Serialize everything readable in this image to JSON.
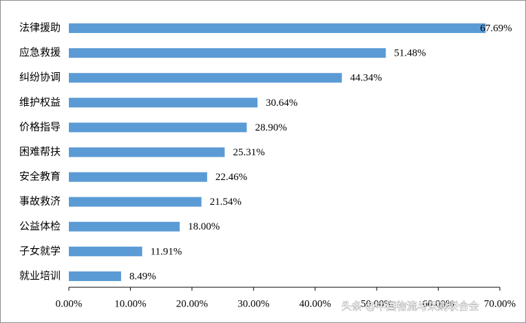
{
  "chart_data": {
    "type": "bar",
    "orientation": "horizontal",
    "categories": [
      "法律援助",
      "应急救援",
      "纠纷协调",
      "维护权益",
      "价格指导",
      "困难帮扶",
      "安全教育",
      "事故救济",
      "公益体检",
      "子女就学",
      "就业培训"
    ],
    "values": [
      67.69,
      51.48,
      44.34,
      30.64,
      28.9,
      25.31,
      22.46,
      21.54,
      18.0,
      11.91,
      8.49
    ],
    "value_labels": [
      "67.69%",
      "51.48%",
      "44.34%",
      "30.64%",
      "28.90%",
      "25.31%",
      "22.46%",
      "21.54%",
      "18.00%",
      "11.91%",
      "8.49%"
    ],
    "color": "#5b9bd5",
    "xlim": [
      0,
      70
    ],
    "xticks": [
      {
        "value": 0,
        "label": "0.00%"
      },
      {
        "value": 10,
        "label": "10.00%"
      },
      {
        "value": 20,
        "label": "20.00%"
      },
      {
        "value": 30,
        "label": "30.00%"
      },
      {
        "value": 40,
        "label": "40.00%"
      },
      {
        "value": 50,
        "label": "50.00%"
      },
      {
        "value": 60,
        "label": "60.00%"
      },
      {
        "value": 70,
        "label": "70.00%"
      }
    ],
    "grid": false,
    "watermark": "头条 @中国物流与采购联合会"
  }
}
